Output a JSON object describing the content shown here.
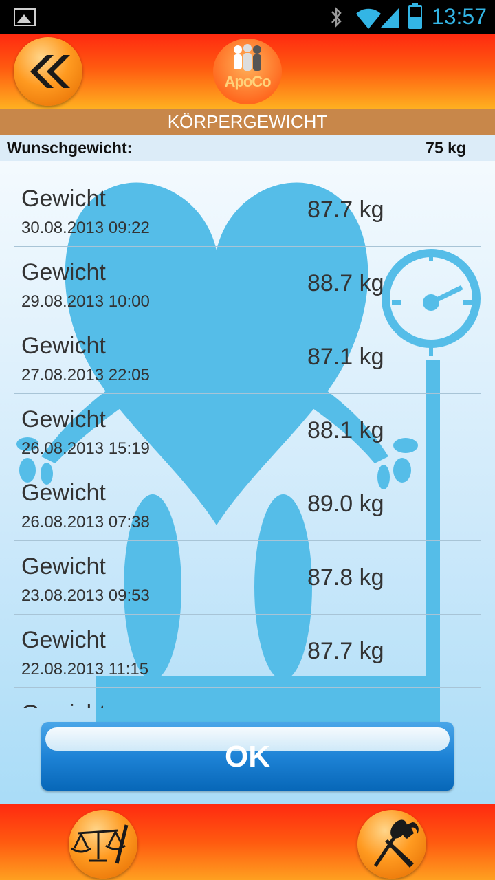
{
  "status_bar": {
    "time": "13:57"
  },
  "header": {
    "logo_text": "ApoCo"
  },
  "title": "KÖRPERGEWICHT",
  "target": {
    "label": "Wunschgewicht:",
    "value": "75 kg"
  },
  "entries": [
    {
      "name": "Gewicht",
      "date": "30.08.2013 09:22",
      "weight": "87.7 kg"
    },
    {
      "name": "Gewicht",
      "date": "29.08.2013 10:00",
      "weight": "88.7 kg"
    },
    {
      "name": "Gewicht",
      "date": "27.08.2013 22:05",
      "weight": "87.1 kg"
    },
    {
      "name": "Gewicht",
      "date": "26.08.2013 15:19",
      "weight": "88.1 kg"
    },
    {
      "name": "Gewicht",
      "date": "26.08.2013 07:38",
      "weight": "89.0 kg"
    },
    {
      "name": "Gewicht",
      "date": "23.08.2013 09:53",
      "weight": "87.8 kg"
    },
    {
      "name": "Gewicht",
      "date": "22.08.2013 11:15",
      "weight": "87.7 kg"
    },
    {
      "name": "Gewicht",
      "date": "",
      "weight": ""
    }
  ],
  "ok_label": "OK"
}
